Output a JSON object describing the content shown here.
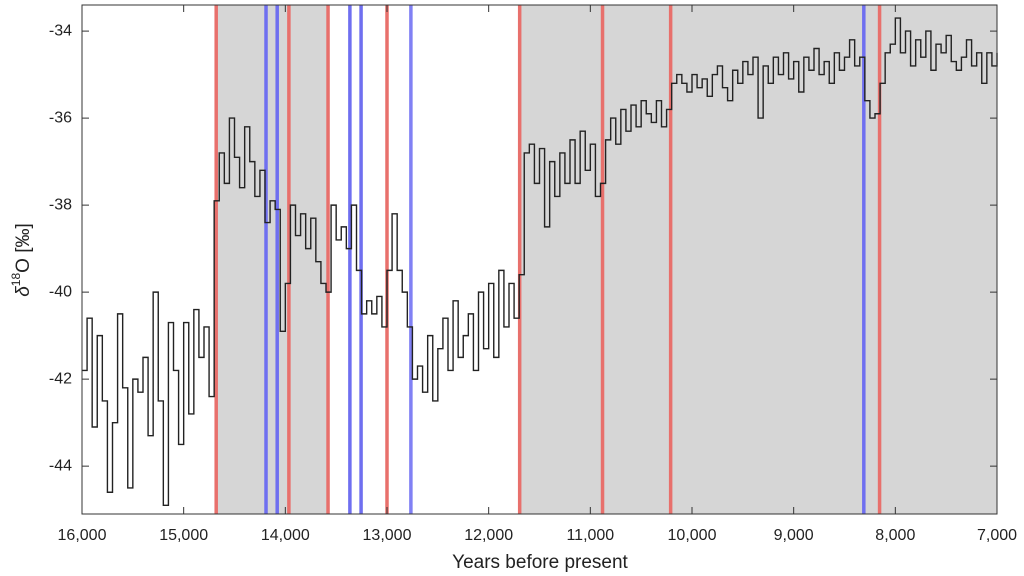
{
  "chart_data": {
    "type": "step-line",
    "xlabel": "Years before present",
    "ylabel": [
      "δ",
      "18",
      "O [‰]"
    ],
    "xlim": [
      16000,
      7000
    ],
    "ylim": [
      -45.1,
      -33.4
    ],
    "xticks": [
      {
        "value": 16000,
        "label": "16,000"
      },
      {
        "value": 15000,
        "label": "15,000"
      },
      {
        "value": 14000,
        "label": "14,000"
      },
      {
        "value": 13000,
        "label": "13,000"
      },
      {
        "value": 12000,
        "label": "12,000"
      },
      {
        "value": 11000,
        "label": "11,000"
      },
      {
        "value": 10000,
        "label": "10,000"
      },
      {
        "value": 9000,
        "label": "9,000"
      },
      {
        "value": 8000,
        "label": "8,000"
      },
      {
        "value": 7000,
        "label": "7,000"
      }
    ],
    "yticks": [
      -44,
      -42,
      -40,
      -38,
      -36,
      -34
    ],
    "shaded": [
      [
        14680,
        13580
      ],
      [
        11695,
        7000
      ]
    ],
    "shade_color": "#d6d6d6",
    "vlines": [
      {
        "x": 14680,
        "color": "#e8706c"
      },
      {
        "x": 14190,
        "color": "#6f6ff0"
      },
      {
        "x": 14080,
        "color": "#6f6ff0"
      },
      {
        "x": 13965,
        "color": "#e8706c"
      },
      {
        "x": 13580,
        "color": "#e8706c"
      },
      {
        "x": 13365,
        "color": "#6f6ff0"
      },
      {
        "x": 13255,
        "color": "#6f6ff0"
      },
      {
        "x": 13000,
        "color": "#e8706c"
      },
      {
        "x": 12765,
        "color": "#8080f4"
      },
      {
        "x": 11695,
        "color": "#e8706c"
      },
      {
        "x": 10880,
        "color": "#e8706c"
      },
      {
        "x": 10210,
        "color": "#e8706c"
      },
      {
        "x": 8310,
        "color": "#6f6ff0"
      },
      {
        "x": 8155,
        "color": "#e8706c"
      }
    ],
    "series": [
      {
        "color": "#222222",
        "x": [
          16000,
          15950,
          15900,
          15850,
          15800,
          15750,
          15700,
          15650,
          15600,
          15550,
          15500,
          15450,
          15400,
          15350,
          15300,
          15250,
          15200,
          15150,
          15100,
          15050,
          15000,
          14950,
          14900,
          14850,
          14800,
          14750,
          14700,
          14650,
          14600,
          14550,
          14500,
          14450,
          14400,
          14350,
          14300,
          14250,
          14200,
          14150,
          14100,
          14050,
          14000,
          13950,
          13900,
          13850,
          13800,
          13750,
          13700,
          13650,
          13600,
          13550,
          13500,
          13450,
          13400,
          13350,
          13300,
          13250,
          13200,
          13150,
          13100,
          13050,
          13000,
          12950,
          12900,
          12850,
          12800,
          12750,
          12700,
          12650,
          12600,
          12550,
          12500,
          12450,
          12400,
          12350,
          12300,
          12250,
          12200,
          12150,
          12100,
          12050,
          12000,
          11950,
          11900,
          11850,
          11800,
          11750,
          11700,
          11650,
          11600,
          11550,
          11500,
          11450,
          11400,
          11350,
          11300,
          11250,
          11200,
          11150,
          11100,
          11050,
          11000,
          10950,
          10900,
          10850,
          10800,
          10750,
          10700,
          10650,
          10600,
          10550,
          10500,
          10450,
          10400,
          10350,
          10300,
          10250,
          10200,
          10150,
          10100,
          10050,
          10000,
          9950,
          9900,
          9850,
          9800,
          9750,
          9700,
          9650,
          9600,
          9550,
          9500,
          9450,
          9400,
          9350,
          9300,
          9250,
          9200,
          9150,
          9100,
          9050,
          9000,
          8950,
          8900,
          8850,
          8800,
          8750,
          8700,
          8650,
          8600,
          8550,
          8500,
          8450,
          8400,
          8350,
          8300,
          8250,
          8200,
          8150,
          8100,
          8050,
          8000,
          7950,
          7900,
          7850,
          7800,
          7750,
          7700,
          7650,
          7600,
          7550,
          7500,
          7450,
          7400,
          7350,
          7300,
          7250,
          7200,
          7150,
          7100,
          7050,
          7000
        ],
        "values": [
          -41.8,
          -40.6,
          -43.1,
          -41.0,
          -42.5,
          -44.6,
          -43.0,
          -40.5,
          -42.2,
          -44.5,
          -42.0,
          -42.3,
          -41.5,
          -43.3,
          -40.0,
          -42.5,
          -44.9,
          -40.7,
          -41.8,
          -43.5,
          -40.7,
          -42.8,
          -40.4,
          -41.5,
          -40.8,
          -42.4,
          -37.9,
          -36.8,
          -37.5,
          -36.0,
          -36.9,
          -37.6,
          -36.2,
          -37.0,
          -37.8,
          -37.2,
          -38.4,
          -37.9,
          -38.1,
          -40.9,
          -39.8,
          -38.0,
          -38.7,
          -38.2,
          -39.0,
          -38.3,
          -39.3,
          -39.8,
          -40.0,
          -38.0,
          -38.8,
          -38.5,
          -39.0,
          -38.0,
          -39.5,
          -40.5,
          -40.2,
          -40.5,
          -40.1,
          -40.8,
          -39.5,
          -38.2,
          -39.5,
          -40.0,
          -40.8,
          -42.0,
          -41.7,
          -42.3,
          -41.0,
          -42.5,
          -41.3,
          -40.6,
          -41.8,
          -40.2,
          -41.5,
          -41.0,
          -40.5,
          -41.8,
          -40.0,
          -41.3,
          -39.8,
          -41.5,
          -39.5,
          -40.8,
          -39.8,
          -40.6,
          -39.6,
          -36.8,
          -36.6,
          -37.5,
          -36.7,
          -38.5,
          -37.0,
          -37.8,
          -36.8,
          -37.5,
          -36.5,
          -37.5,
          -36.3,
          -37.2,
          -36.6,
          -37.8,
          -37.5,
          -36.5,
          -36.0,
          -36.6,
          -35.8,
          -36.3,
          -35.7,
          -36.2,
          -35.6,
          -35.9,
          -36.1,
          -35.6,
          -36.2,
          -35.8,
          -35.2,
          -35.0,
          -35.2,
          -35.4,
          -35.0,
          -35.3,
          -35.1,
          -35.5,
          -35.0,
          -34.8,
          -35.3,
          -35.6,
          -34.9,
          -35.2,
          -34.7,
          -35.0,
          -34.6,
          -36.0,
          -34.8,
          -35.2,
          -34.6,
          -35.0,
          -34.5,
          -35.1,
          -34.7,
          -35.4,
          -34.6,
          -34.9,
          -34.4,
          -35.0,
          -34.7,
          -35.2,
          -34.5,
          -34.9,
          -34.6,
          -34.2,
          -34.8,
          -34.6,
          -35.6,
          -36.0,
          -35.9,
          -35.2,
          -34.5,
          -34.3,
          -33.7,
          -34.5,
          -34.0,
          -34.8,
          -34.2,
          -34.6,
          -34.0,
          -34.9,
          -34.3,
          -34.5,
          -34.1,
          -34.7,
          -34.9,
          -34.6,
          -34.2,
          -34.8,
          -34.5,
          -35.2,
          -34.5,
          -34.8,
          -34.5
        ]
      }
    ]
  }
}
